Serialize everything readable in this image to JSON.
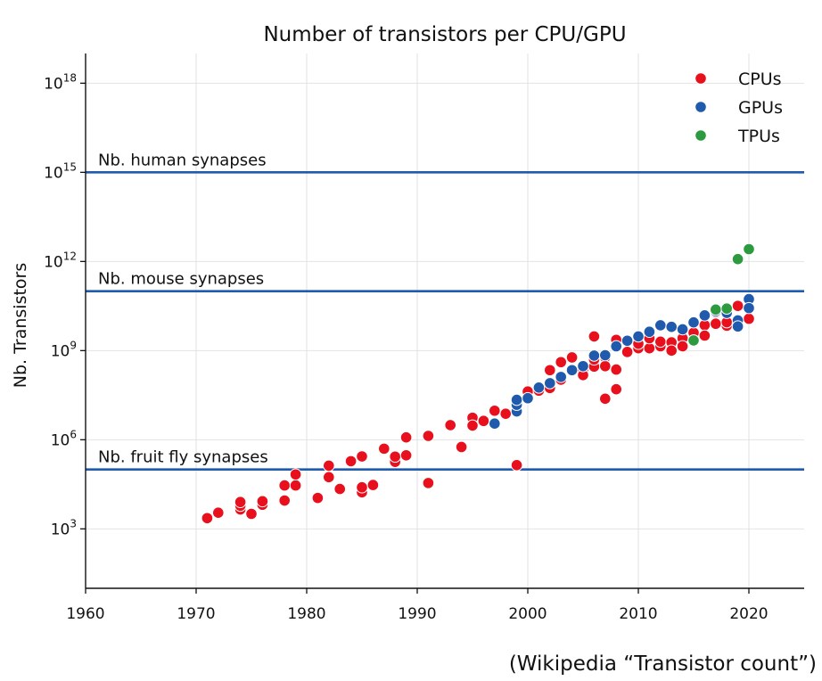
{
  "chart_data": {
    "type": "scatter",
    "title": "Number of transistors per CPU/GPU",
    "xlabel": "",
    "ylabel": "Nb. Transistors",
    "xlim": [
      1960,
      2025
    ],
    "ylim_log10": [
      1,
      19
    ],
    "y_scale": "log",
    "grid": true,
    "legend_position": "top-right",
    "source_note": "(Wikipedia “Transistor count”)",
    "x_ticks": [
      "1960",
      "1970",
      "1980",
      "1990",
      "2000",
      "2010",
      "2020"
    ],
    "y_ticks": [
      {
        "base": "10",
        "exp": "3",
        "log10": 3
      },
      {
        "base": "10",
        "exp": "6",
        "log10": 6
      },
      {
        "base": "10",
        "exp": "9",
        "log10": 9
      },
      {
        "base": "10",
        "exp": "12",
        "log10": 12
      },
      {
        "base": "10",
        "exp": "15",
        "log10": 15
      },
      {
        "base": "10",
        "exp": "18",
        "log10": 18
      }
    ],
    "reference_lines": [
      {
        "label": "Nb. human synapses",
        "value": 1000000000000000.0
      },
      {
        "label": "Nb. mouse synapses",
        "value": 100000000000.0
      },
      {
        "label": "Nb. fruit fly synapses",
        "value": 100000.0
      }
    ],
    "series": [
      {
        "name": "CPUs",
        "color": "#e8101c",
        "points": [
          [
            1971,
            2300
          ],
          [
            1972,
            3500
          ],
          [
            1974,
            4500
          ],
          [
            1974,
            6000
          ],
          [
            1974,
            8000
          ],
          [
            1975,
            3200
          ],
          [
            1976,
            6500
          ],
          [
            1976,
            8500
          ],
          [
            1978,
            9000
          ],
          [
            1978,
            29000
          ],
          [
            1979,
            29000
          ],
          [
            1979,
            68000
          ],
          [
            1981,
            11000
          ],
          [
            1982,
            55000
          ],
          [
            1982,
            134000
          ],
          [
            1983,
            22000
          ],
          [
            1984,
            190000
          ],
          [
            1985,
            275000
          ],
          [
            1985,
            17000
          ],
          [
            1985,
            25000
          ],
          [
            1986,
            30000
          ],
          [
            1987,
            500000
          ],
          [
            1988,
            180000
          ],
          [
            1988,
            270000
          ],
          [
            1989,
            1200000
          ],
          [
            1989,
            300000
          ],
          [
            1991,
            1350000
          ],
          [
            1991,
            35000
          ],
          [
            1993,
            3100000
          ],
          [
            1994,
            570000
          ],
          [
            1995,
            5500000
          ],
          [
            1995,
            3000000
          ],
          [
            1996,
            4300000
          ],
          [
            1997,
            9500000
          ],
          [
            1998,
            7500000
          ],
          [
            1999,
            22000000
          ],
          [
            1999,
            140000
          ],
          [
            2000,
            37000000
          ],
          [
            2000,
            42000000
          ],
          [
            2001,
            45000000
          ],
          [
            2002,
            220000000
          ],
          [
            2002,
            55000000
          ],
          [
            2003,
            410000000
          ],
          [
            2003,
            105000000
          ],
          [
            2004,
            590000000
          ],
          [
            2005,
            230000000
          ],
          [
            2005,
            150000000
          ],
          [
            2006,
            290000000
          ],
          [
            2006,
            3000000000.0
          ],
          [
            2006,
            500000000
          ],
          [
            2007,
            600000000
          ],
          [
            2007,
            24000000
          ],
          [
            2007,
            300000000
          ],
          [
            2008,
            50000000
          ],
          [
            2008,
            2300000000.0
          ],
          [
            2008,
            230000000
          ],
          [
            2009,
            900000000
          ],
          [
            2010,
            1200000000.0
          ],
          [
            2010,
            1700000000.0
          ],
          [
            2011,
            1200000000.0
          ],
          [
            2011,
            2600000000.0
          ],
          [
            2012,
            1400000000.0
          ],
          [
            2012,
            2000000000.0
          ],
          [
            2013,
            1900000000.0
          ],
          [
            2013,
            1000000000.0
          ],
          [
            2014,
            2600000000.0
          ],
          [
            2014,
            1400000000.0
          ],
          [
            2015,
            4000000000.0
          ],
          [
            2015,
            2200000000.0
          ],
          [
            2016,
            7200000000.0
          ],
          [
            2016,
            3200000000.0
          ],
          [
            2017,
            19200000000.0
          ],
          [
            2017,
            8000000000.0
          ],
          [
            2018,
            6900000000.0
          ],
          [
            2018,
            9000000000.0
          ],
          [
            2019,
            32000000000.0
          ],
          [
            2019,
            8500000000.0
          ],
          [
            2020,
            11800000000.0
          ]
        ]
      },
      {
        "name": "GPUs",
        "color": "#1f5aad",
        "points": [
          [
            1997,
            3500000
          ],
          [
            1999,
            9000000
          ],
          [
            1999,
            15000000
          ],
          [
            1999,
            22000000
          ],
          [
            2000,
            25000000
          ],
          [
            2001,
            57000000
          ],
          [
            2002,
            80000000
          ],
          [
            2003,
            130000000
          ],
          [
            2004,
            220000000
          ],
          [
            2005,
            300000000
          ],
          [
            2006,
            680000000
          ],
          [
            2007,
            700000000
          ],
          [
            2008,
            1400000000.0
          ],
          [
            2009,
            2150000000.0
          ],
          [
            2010,
            3000000000.0
          ],
          [
            2011,
            4300000000.0
          ],
          [
            2012,
            7100000000.0
          ],
          [
            2013,
            6300000000.0
          ],
          [
            2014,
            5200000000.0
          ],
          [
            2015,
            8900000000.0
          ],
          [
            2016,
            15300000000.0
          ],
          [
            2017,
            21100000000.0
          ],
          [
            2018,
            18600000000.0
          ],
          [
            2019,
            10400000000.0
          ],
          [
            2019,
            6500000000.0
          ],
          [
            2020,
            54000000000.0
          ],
          [
            2020,
            27000000000.0
          ]
        ]
      },
      {
        "name": "TPUs",
        "color": "#2e9a3f",
        "points": [
          [
            2015,
            2200000000.0
          ],
          [
            2017,
            24000000000.0
          ],
          [
            2018,
            26000000000.0
          ],
          [
            2019,
            1200000000000.0
          ],
          [
            2020,
            2600000000000.0
          ]
        ]
      }
    ]
  }
}
